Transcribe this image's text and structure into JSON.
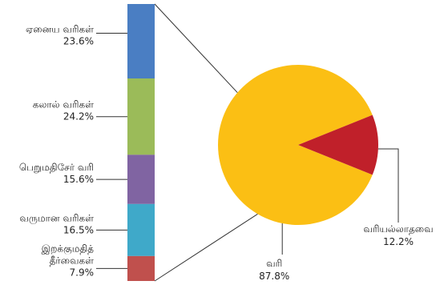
{
  "chart_data": {
    "type": "bar-of-pie",
    "pie": {
      "slices": [
        {
          "name": "வரி",
          "value": 87.8,
          "value_label": "87.8%",
          "color": "#FBBF14"
        },
        {
          "name": "வரியல்லாதவை",
          "value": 12.2,
          "value_label": "12.2%",
          "color": "#C0202A"
        }
      ]
    },
    "bar": {
      "segments": [
        {
          "name": "ஏனைய வரிகள்",
          "name_lines": [
            "ஏனைய வரிகள்"
          ],
          "value": 23.6,
          "value_label": "23.6%",
          "color": "#4A7EC3"
        },
        {
          "name": "கலால் வரிகள்",
          "name_lines": [
            "கலால் வரிகள்"
          ],
          "value": 24.2,
          "value_label": "24.2%",
          "color": "#9BBB59"
        },
        {
          "name": "பெறுமதிசேர் வரி",
          "name_lines": [
            "பெறுமதிசேர் வரி"
          ],
          "value": 15.6,
          "value_label": "15.6%",
          "color": "#8064A2"
        },
        {
          "name": "வருமான வரிகள்",
          "name_lines": [
            "வருமான வரிகள்"
          ],
          "value": 16.5,
          "value_label": "16.5%",
          "color": "#3FA9C9"
        },
        {
          "name": "இறக்குமதித் தீர்வைகள்",
          "name_lines": [
            "இறக்குமதித்",
            "தீர்வைகள்"
          ],
          "value": 7.9,
          "value_label": "7.9%",
          "color": "#C0504D"
        }
      ]
    }
  }
}
